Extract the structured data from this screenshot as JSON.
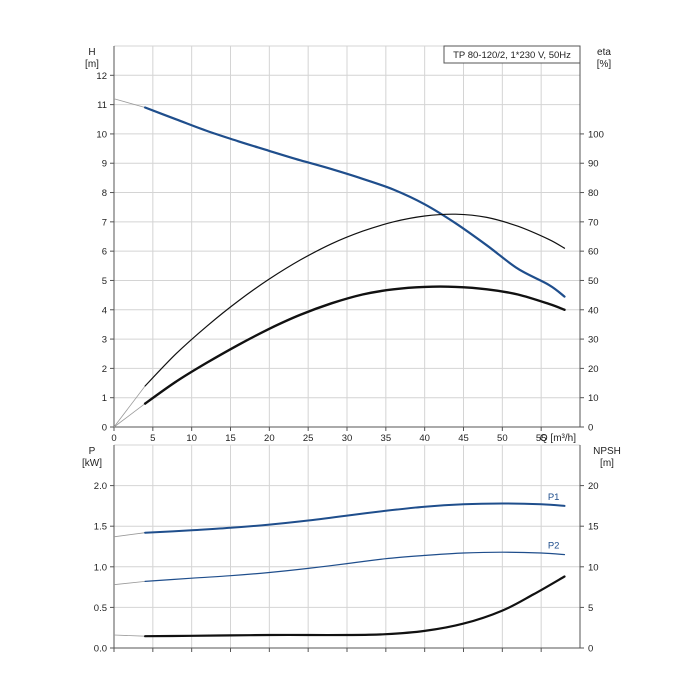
{
  "colors": {
    "blue": "#1f4e8c",
    "black": "#111111",
    "grid": "#d4d4d4"
  },
  "chart_data": [
    {
      "type": "line",
      "panel": "top",
      "legend": "TP 80-120/2, 1*230 V, 50Hz",
      "x": {
        "label": "Q [m³/h]",
        "lim": [
          0,
          60
        ],
        "ticks": [
          0,
          5,
          10,
          15,
          20,
          25,
          30,
          35,
          40,
          45,
          50,
          55
        ],
        "tick_labels": [
          "0",
          "5",
          "10",
          "15",
          "20",
          "25",
          "30",
          "35",
          "40",
          "45",
          "50",
          "55"
        ]
      },
      "y_left": {
        "label": "H",
        "unit": "[m]",
        "lim": [
          0,
          13
        ],
        "ticks": [
          0,
          1,
          2,
          3,
          4,
          5,
          6,
          7,
          8,
          9,
          10,
          11,
          12
        ],
        "tick_labels": [
          "0",
          "1",
          "2",
          "3",
          "4",
          "5",
          "6",
          "7",
          "8",
          "9",
          "10",
          "11",
          "12"
        ]
      },
      "y_right": {
        "label": "eta",
        "unit": "[%]",
        "lim": [
          0,
          130
        ],
        "ticks": [
          0,
          10,
          20,
          30,
          40,
          50,
          60,
          70,
          80,
          90,
          100
        ],
        "tick_labels": [
          "0",
          "10",
          "20",
          "30",
          "40",
          "50",
          "60",
          "70",
          "80",
          "90",
          "100"
        ]
      },
      "grid": true,
      "series": [
        {
          "axis": "left",
          "color": "#1f4e8c",
          "width": 2.2,
          "extension": [
            [
              0,
              11.2
            ],
            [
              4,
              10.9
            ]
          ],
          "x": [
            4,
            8,
            12,
            16,
            20,
            24,
            28,
            32,
            36,
            40,
            44,
            48,
            52,
            56,
            58
          ],
          "y": [
            10.9,
            10.5,
            10.1,
            9.75,
            9.42,
            9.1,
            8.8,
            8.47,
            8.1,
            7.6,
            6.95,
            6.2,
            5.4,
            4.85,
            4.45
          ]
        },
        {
          "axis": "right",
          "color": "#111111",
          "width": 1.2,
          "extension": [
            [
              0,
              0
            ],
            [
              4,
              14
            ]
          ],
          "x": [
            4,
            8,
            12,
            16,
            20,
            24,
            28,
            32,
            36,
            40,
            44,
            48,
            52,
            56,
            58
          ],
          "y": [
            14,
            25,
            34.5,
            43,
            50.5,
            57,
            62.5,
            66.8,
            70,
            72,
            72.6,
            71.5,
            68.5,
            64,
            61
          ]
        },
        {
          "axis": "right",
          "color": "#111111",
          "width": 2.4,
          "extension": [
            [
              0,
              0
            ],
            [
              4,
              8
            ]
          ],
          "x": [
            4,
            8,
            12,
            16,
            20,
            24,
            28,
            32,
            36,
            40,
            44,
            48,
            52,
            56,
            58
          ],
          "y": [
            8,
            15.5,
            22,
            28,
            33.5,
            38.3,
            42.2,
            45.2,
            47,
            47.8,
            47.8,
            47,
            45.2,
            42,
            40
          ]
        }
      ]
    },
    {
      "type": "line",
      "panel": "bottom",
      "x": {
        "label": "",
        "lim": [
          0,
          60
        ],
        "ticks": [
          0,
          5,
          10,
          15,
          20,
          25,
          30,
          35,
          40,
          45,
          50,
          55
        ],
        "tick_labels": []
      },
      "y_left": {
        "label": "P",
        "unit": "[kW]",
        "lim": [
          0,
          2.5
        ],
        "ticks": [
          0,
          0.5,
          1.0,
          1.5,
          2.0
        ],
        "tick_labels": [
          "0.0",
          "0.5",
          "1.0",
          "1.5",
          "2.0"
        ]
      },
      "y_right": {
        "label": "NPSH",
        "unit": "[m]",
        "lim": [
          0,
          25
        ],
        "ticks": [
          0,
          5,
          10,
          15,
          20
        ],
        "tick_labels": [
          "0",
          "5",
          "10",
          "15",
          "20"
        ]
      },
      "grid": true,
      "series": [
        {
          "name": "P1",
          "axis": "left",
          "color": "#1f4e8c",
          "width": 2.0,
          "extension": [
            [
              0,
              1.37
            ],
            [
              4,
              1.42
            ]
          ],
          "x": [
            4,
            10,
            15,
            20,
            25,
            30,
            35,
            40,
            45,
            50,
            55,
            58
          ],
          "y": [
            1.42,
            1.45,
            1.48,
            1.52,
            1.57,
            1.63,
            1.69,
            1.74,
            1.77,
            1.78,
            1.77,
            1.75
          ]
        },
        {
          "name": "P2",
          "axis": "left",
          "color": "#1f4e8c",
          "width": 1.2,
          "extension": [
            [
              0,
              0.78
            ],
            [
              4,
              0.82
            ]
          ],
          "x": [
            4,
            10,
            15,
            20,
            25,
            30,
            35,
            40,
            45,
            50,
            55,
            58
          ],
          "y": [
            0.82,
            0.86,
            0.89,
            0.93,
            0.98,
            1.04,
            1.1,
            1.14,
            1.17,
            1.18,
            1.17,
            1.15
          ]
        },
        {
          "axis": "right",
          "color": "#111111",
          "width": 2.2,
          "extension": [
            [
              0,
              1.6
            ],
            [
              4,
              1.45
            ]
          ],
          "x": [
            4,
            10,
            15,
            20,
            25,
            30,
            35,
            40,
            45,
            50,
            54,
            58
          ],
          "y": [
            1.45,
            1.5,
            1.55,
            1.6,
            1.6,
            1.6,
            1.7,
            2.1,
            3.0,
            4.6,
            6.6,
            8.8
          ]
        }
      ]
    }
  ]
}
